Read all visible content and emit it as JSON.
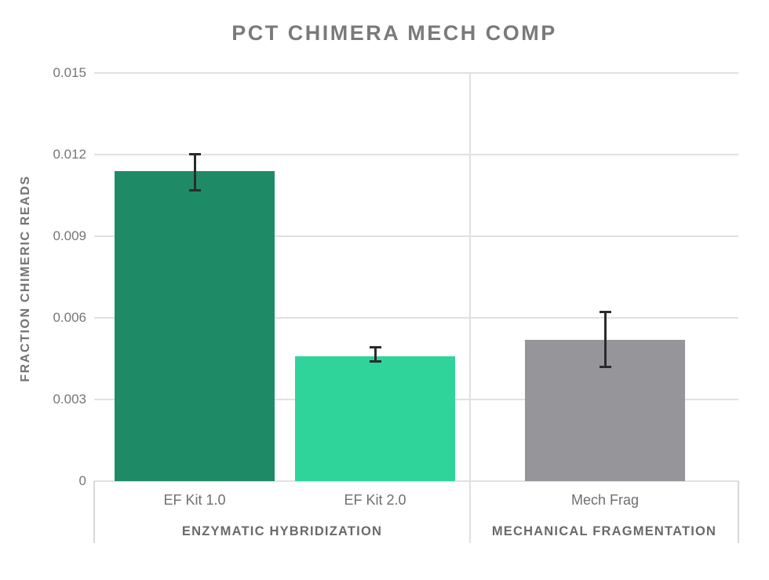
{
  "title": "PCT CHIMERA MECH COMP",
  "chart_data": {
    "type": "bar",
    "title": "PCT CHIMERA MECH COMP",
    "xlabel": "",
    "ylabel": "FRACTION CHIMERIC READS",
    "ylim": [
      0,
      0.015
    ],
    "yticks": [
      0,
      0.003,
      0.006,
      0.009,
      0.012,
      0.015
    ],
    "ytick_labels": [
      "0",
      "0.003",
      "0.006",
      "0.009",
      "0.012",
      "0.015"
    ],
    "grid": true,
    "legend": "none",
    "groups": [
      {
        "label": "ENZYMATIC HYBRIDIZATION",
        "bars": [
          {
            "category": "EF Kit 1.0",
            "value": 0.0114,
            "error_high": 0.012,
            "error_low": 0.0107,
            "color": "#1f8b66"
          },
          {
            "category": "EF Kit 2.0",
            "value": 0.0046,
            "error_high": 0.0049,
            "error_low": 0.0044,
            "color": "#2ed49a"
          }
        ]
      },
      {
        "label": "MECHANICAL FRAGMENTATION",
        "bars": [
          {
            "category": "Mech Frag",
            "value": 0.0052,
            "error_high": 0.0062,
            "error_low": 0.0042,
            "color": "#95959a"
          }
        ]
      }
    ],
    "colors": {
      "gridline": "#e1e1e1",
      "frame": "#d8d8d8",
      "error_bar": "#2b2b2f",
      "title_text": "#7a7a7a",
      "tick_text": "#767676",
      "category_text": "#6f6f6f",
      "group_text": "#6a6a6a"
    }
  }
}
